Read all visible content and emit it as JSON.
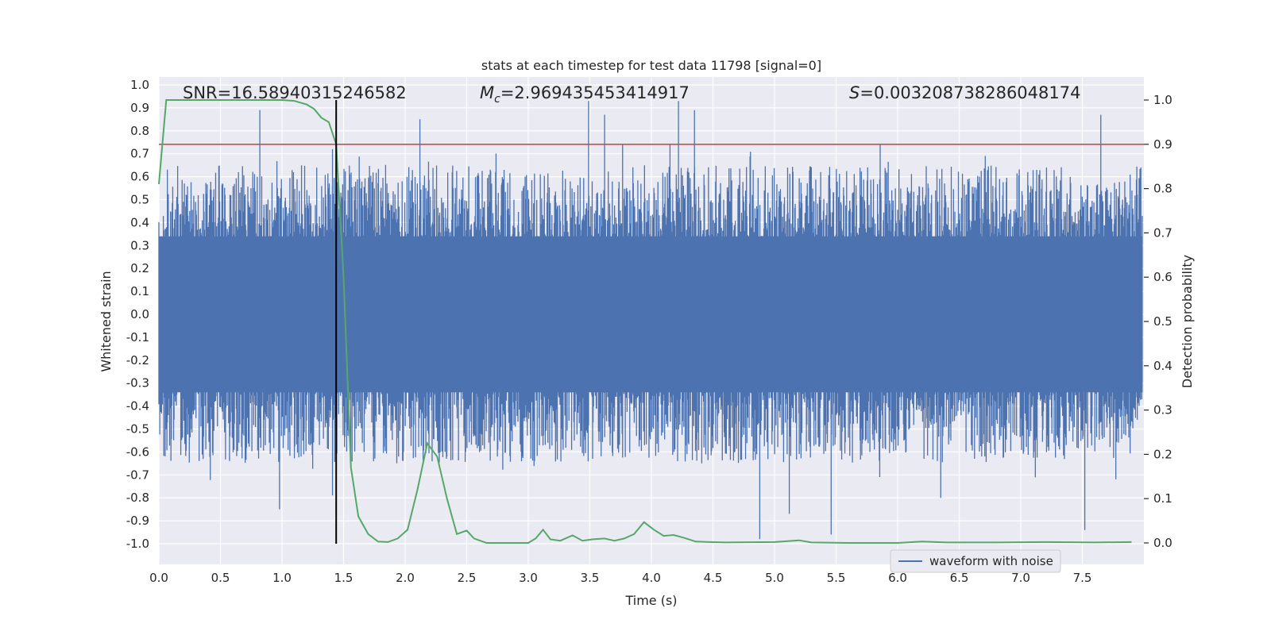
{
  "chart_data": {
    "type": "line",
    "title": "stats at each timestep for test data 11798 [signal=0]",
    "xlabel": "Time (s)",
    "ylabel": "Whitened strain",
    "y2label": "Detection probability",
    "xlim": [
      0.0,
      8.0
    ],
    "ylim": [
      -1.09,
      1.03
    ],
    "y2lim": [
      -0.05,
      1.04
    ],
    "xticks": [
      "0.0",
      "0.5",
      "1.0",
      "1.5",
      "2.0",
      "2.5",
      "3.0",
      "3.5",
      "4.0",
      "4.5",
      "5.0",
      "5.5",
      "6.0",
      "6.5",
      "7.0",
      "7.5"
    ],
    "yticks": [
      "1.0",
      "0.9",
      "0.8",
      "0.7",
      "0.6",
      "0.5",
      "0.4",
      "0.3",
      "0.2",
      "0.1",
      "0.0",
      "-0.1",
      "-0.2",
      "-0.3",
      "-0.4",
      "-0.5",
      "-0.6",
      "-0.7",
      "-0.8",
      "-0.9",
      "-1.0"
    ],
    "y2ticks": [
      "1.0",
      "0.9",
      "0.8",
      "0.7",
      "0.6",
      "0.5",
      "0.4",
      "0.3",
      "0.2",
      "0.1",
      "0.0"
    ],
    "annotations": {
      "snr": "SNR=16.58940315246582",
      "mc_symbol": "M",
      "mc_sub": "c",
      "mc_value": "=2.969435453414917",
      "s_symbol": "S",
      "s_value": "=0.003208738286048174"
    },
    "threshold": {
      "value": 0.9,
      "axis": "right",
      "color": "#c44e52"
    },
    "vline": {
      "x": 1.44,
      "color": "#000000"
    },
    "legend": {
      "label": "waveform with noise",
      "location": "lower-right"
    },
    "series": [
      {
        "name": "waveform with noise",
        "axis": "left",
        "color": "#4c72b0",
        "kind": "noise-envelope",
        "typical_abs_max": 0.65,
        "notable_peaks": [
          {
            "x": 0.82,
            "y": 0.89
          },
          {
            "x": 1.41,
            "y": 0.72
          },
          {
            "x": 2.12,
            "y": 0.85
          },
          {
            "x": 3.49,
            "y": 0.93
          },
          {
            "x": 3.62,
            "y": 0.87
          },
          {
            "x": 4.22,
            "y": 0.93
          },
          {
            "x": 4.35,
            "y": 0.89
          },
          {
            "x": 7.65,
            "y": 0.87
          },
          {
            "x": 0.98,
            "y": -0.85
          },
          {
            "x": 1.41,
            "y": -0.79
          },
          {
            "x": 4.88,
            "y": -0.98
          },
          {
            "x": 5.46,
            "y": -0.96
          },
          {
            "x": 7.52,
            "y": -0.94
          },
          {
            "x": 5.12,
            "y": -0.87
          },
          {
            "x": 6.35,
            "y": -0.8
          }
        ]
      },
      {
        "name": "detection probability",
        "axis": "right",
        "color": "#55a868",
        "x": [
          0.0,
          0.06,
          0.1,
          0.2,
          0.4,
          0.6,
          0.8,
          1.0,
          1.1,
          1.2,
          1.26,
          1.32,
          1.38,
          1.44,
          1.5,
          1.56,
          1.62,
          1.7,
          1.78,
          1.86,
          1.94,
          2.02,
          2.1,
          2.18,
          2.26,
          2.34,
          2.42,
          2.5,
          2.56,
          2.66,
          2.8,
          3.0,
          3.06,
          3.12,
          3.18,
          3.26,
          3.36,
          3.44,
          3.52,
          3.62,
          3.7,
          3.78,
          3.86,
          3.94,
          4.02,
          4.1,
          4.18,
          4.26,
          4.36,
          4.6,
          5.0,
          5.2,
          5.3,
          5.6,
          6.0,
          6.2,
          6.4,
          6.8,
          7.2,
          7.6,
          7.9
        ],
        "values": [
          0.81,
          1.0,
          1.0,
          1.0,
          1.0,
          1.0,
          1.0,
          1.0,
          0.998,
          0.99,
          0.98,
          0.96,
          0.95,
          0.9,
          0.6,
          0.17,
          0.06,
          0.02,
          0.003,
          0.002,
          0.01,
          0.03,
          0.12,
          0.225,
          0.195,
          0.1,
          0.02,
          0.028,
          0.01,
          0.0,
          0.0,
          0.0,
          0.01,
          0.03,
          0.008,
          0.005,
          0.017,
          0.005,
          0.008,
          0.01,
          0.005,
          0.01,
          0.02,
          0.047,
          0.03,
          0.016,
          0.018,
          0.012,
          0.003,
          0.001,
          0.002,
          0.006,
          0.001,
          0.0,
          0.0,
          0.003,
          0.001,
          0.001,
          0.002,
          0.001,
          0.002
        ]
      }
    ]
  }
}
